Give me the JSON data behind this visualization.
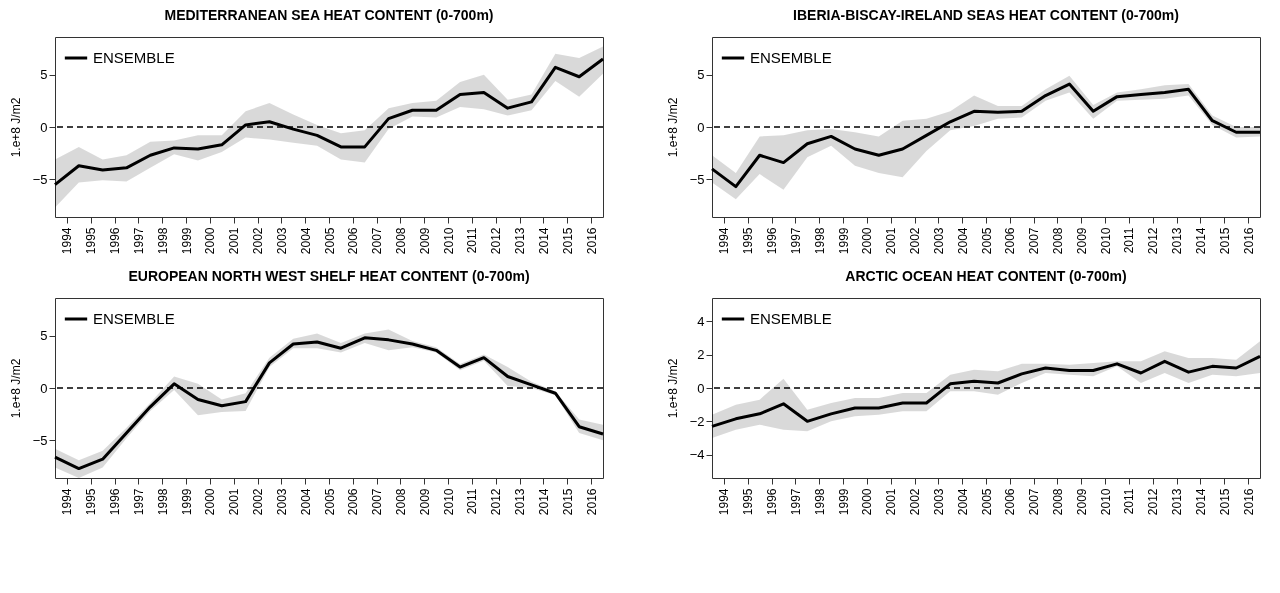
{
  "chart_data": [
    {
      "type": "line",
      "title": "MEDITERRANEAN SEA HEAT CONTENT (0-700m)",
      "ylabel": "1.e+8 J/m2",
      "legend": "top left",
      "grid": false,
      "x": [
        1993.5,
        1994.5,
        1995.5,
        1996.5,
        1997.5,
        1998.5,
        1999.5,
        2000.5,
        2001.5,
        2002.5,
        2003.5,
        2004.5,
        2005.5,
        2006.5,
        2007.5,
        2008.5,
        2009.5,
        2010.5,
        2011.5,
        2012.5,
        2013.5,
        2014.5,
        2015.5,
        2016.5
      ],
      "xlim": [
        1993.5,
        2016.5
      ],
      "xticks": [
        1994,
        1995,
        1996,
        1997,
        1998,
        1999,
        2000,
        2001,
        2002,
        2003,
        2004,
        2005,
        2006,
        2007,
        2008,
        2009,
        2010,
        2011,
        2012,
        2013,
        2014,
        2015,
        2016
      ],
      "ylim": [
        -8.6,
        8.6
      ],
      "yticks": [
        -5,
        0,
        5
      ],
      "series": [
        {
          "name": "ENSEMBLE",
          "color": "#000000",
          "values": [
            -5.5,
            -3.7,
            -4.1,
            -3.9,
            -2.7,
            -2.0,
            -2.1,
            -1.7,
            0.2,
            0.5,
            -0.2,
            -0.8,
            -1.9,
            -1.9,
            0.8,
            1.6,
            1.6,
            3.1,
            3.3,
            1.8,
            2.4,
            5.7,
            4.8,
            6.5
          ],
          "lower": [
            -7.7,
            -5.3,
            -5.1,
            -5.2,
            -3.9,
            -2.6,
            -3.2,
            -2.4,
            -1.0,
            -1.2,
            -1.5,
            -1.8,
            -3.1,
            -3.4,
            -0.2,
            1.0,
            0.9,
            1.9,
            1.7,
            1.1,
            1.6,
            4.4,
            2.9,
            5.1
          ],
          "upper": [
            -3.1,
            -1.9,
            -3.1,
            -2.7,
            -1.4,
            -1.3,
            -0.8,
            -0.8,
            1.5,
            2.3,
            1.2,
            0.2,
            -0.6,
            -0.3,
            1.8,
            2.3,
            2.5,
            4.3,
            5.0,
            2.6,
            3.1,
            7.0,
            6.6,
            7.7
          ]
        }
      ],
      "ref_lines": [
        {
          "axis": "y",
          "value": 0,
          "line_style": "dashed"
        }
      ]
    },
    {
      "type": "line",
      "title": "IBERIA-BISCAY-IRELAND SEAS HEAT CONTENT (0-700m)",
      "ylabel": "1.e+8 J/m2",
      "legend": "top left",
      "grid": false,
      "x": [
        1993.5,
        1994.5,
        1995.5,
        1996.5,
        1997.5,
        1998.5,
        1999.5,
        2000.5,
        2001.5,
        2002.5,
        2003.5,
        2004.5,
        2005.5,
        2006.5,
        2007.5,
        2008.5,
        2009.5,
        2010.5,
        2011.5,
        2012.5,
        2013.5,
        2014.5,
        2015.5,
        2016.5
      ],
      "xlim": [
        1993.5,
        2016.5
      ],
      "xticks": [
        1994,
        1995,
        1996,
        1997,
        1998,
        1999,
        2000,
        2001,
        2002,
        2003,
        2004,
        2005,
        2006,
        2007,
        2008,
        2009,
        2010,
        2011,
        2012,
        2013,
        2014,
        2015,
        2016
      ],
      "ylim": [
        -8.6,
        8.6
      ],
      "yticks": [
        -5,
        0,
        5
      ],
      "series": [
        {
          "name": "ENSEMBLE",
          "color": "#000000",
          "values": [
            -4.0,
            -5.7,
            -2.7,
            -3.4,
            -1.6,
            -0.9,
            -2.1,
            -2.7,
            -2.1,
            -0.8,
            0.5,
            1.5,
            1.4,
            1.5,
            3.0,
            4.1,
            1.5,
            2.9,
            3.1,
            3.3,
            3.6,
            0.6,
            -0.5,
            -0.5
          ],
          "lower": [
            -5.3,
            -6.9,
            -4.5,
            -6.0,
            -2.9,
            -1.8,
            -3.7,
            -4.4,
            -4.8,
            -2.3,
            -0.3,
            0.1,
            0.8,
            0.9,
            2.5,
            3.3,
            0.8,
            2.5,
            2.6,
            2.7,
            3.0,
            0.2,
            -1.0,
            -0.9
          ],
          "upper": [
            -2.7,
            -4.4,
            -0.9,
            -0.8,
            -0.3,
            -0.2,
            -0.5,
            -0.9,
            0.6,
            0.8,
            1.5,
            3.0,
            2.0,
            2.0,
            3.6,
            4.9,
            2.1,
            3.3,
            3.6,
            4.0,
            4.1,
            1.1,
            0.0,
            0.0
          ]
        }
      ],
      "ref_lines": [
        {
          "axis": "y",
          "value": 0,
          "line_style": "dashed"
        }
      ]
    },
    {
      "type": "line",
      "title": "EUROPEAN NORTH WEST SHELF HEAT CONTENT (0-700m)",
      "ylabel": "1.e+8 J/m2",
      "legend": "top left",
      "grid": false,
      "x": [
        1993.5,
        1994.5,
        1995.5,
        1996.5,
        1997.5,
        1998.5,
        1999.5,
        2000.5,
        2001.5,
        2002.5,
        2003.5,
        2004.5,
        2005.5,
        2006.5,
        2007.5,
        2008.5,
        2009.5,
        2010.5,
        2011.5,
        2012.5,
        2013.5,
        2014.5,
        2015.5,
        2016.5
      ],
      "xlim": [
        1993.5,
        2016.5
      ],
      "xticks": [
        1994,
        1995,
        1996,
        1997,
        1998,
        1999,
        2000,
        2001,
        2002,
        2003,
        2004,
        2005,
        2006,
        2007,
        2008,
        2009,
        2010,
        2011,
        2012,
        2013,
        2014,
        2015,
        2016
      ],
      "ylim": [
        -8.6,
        8.6
      ],
      "yticks": [
        -5,
        0,
        5
      ],
      "series": [
        {
          "name": "ENSEMBLE",
          "color": "#000000",
          "values": [
            -6.6,
            -7.7,
            -6.8,
            -4.3,
            -1.8,
            0.4,
            -1.1,
            -1.7,
            -1.3,
            2.4,
            4.2,
            4.4,
            3.8,
            4.8,
            4.6,
            4.2,
            3.6,
            2.0,
            2.9,
            1.1,
            0.3,
            -0.5,
            -3.7,
            -4.4
          ],
          "lower": [
            -7.6,
            -8.6,
            -7.6,
            -4.8,
            -2.2,
            -0.2,
            -2.6,
            -2.3,
            -2.2,
            2.0,
            3.8,
            3.8,
            3.4,
            4.3,
            3.6,
            3.9,
            3.4,
            1.7,
            2.6,
            0.2,
            0.0,
            -0.7,
            -4.3,
            -5.0
          ],
          "upper": [
            -5.8,
            -6.9,
            -6.0,
            -3.8,
            -1.4,
            1.1,
            0.4,
            -1.1,
            -0.5,
            2.9,
            4.7,
            5.2,
            4.3,
            5.2,
            5.6,
            4.5,
            3.9,
            2.3,
            3.2,
            2.0,
            0.6,
            -0.3,
            -3.0,
            -3.5
          ]
        }
      ],
      "ref_lines": [
        {
          "axis": "y",
          "value": 0,
          "line_style": "dashed"
        }
      ]
    },
    {
      "type": "line",
      "title": "ARCTIC OCEAN HEAT CONTENT (0-700m)",
      "ylabel": "1.e+8 J/m2",
      "legend": "top left",
      "grid": false,
      "x": [
        1993.5,
        1994.5,
        1995.5,
        1996.5,
        1997.5,
        1998.5,
        1999.5,
        2000.5,
        2001.5,
        2002.5,
        2003.5,
        2004.5,
        2005.5,
        2006.5,
        2007.5,
        2008.5,
        2009.5,
        2010.5,
        2011.5,
        2012.5,
        2013.5,
        2014.5,
        2015.5,
        2016.5
      ],
      "xlim": [
        1993.5,
        2016.5
      ],
      "xticks": [
        1994,
        1995,
        1996,
        1997,
        1998,
        1999,
        2000,
        2001,
        2002,
        2003,
        2004,
        2005,
        2006,
        2007,
        2008,
        2009,
        2010,
        2011,
        2012,
        2013,
        2014,
        2015,
        2016
      ],
      "ylim": [
        -5.4,
        5.4
      ],
      "yticks": [
        -4,
        -2,
        0,
        2,
        4
      ],
      "series": [
        {
          "name": "ENSEMBLE",
          "color": "#000000",
          "values": [
            -2.3,
            -1.85,
            -1.55,
            -0.95,
            -2.0,
            -1.55,
            -1.2,
            -1.2,
            -0.9,
            -0.9,
            0.25,
            0.4,
            0.3,
            0.85,
            1.2,
            1.05,
            1.05,
            1.45,
            0.9,
            1.6,
            0.95,
            1.3,
            1.2,
            1.9
          ],
          "lower": [
            -3.0,
            -2.5,
            -2.2,
            -2.5,
            -2.6,
            -2.0,
            -1.7,
            -1.6,
            -1.4,
            -1.4,
            -0.2,
            -0.2,
            -0.4,
            0.3,
            0.9,
            0.8,
            0.7,
            1.3,
            0.3,
            0.9,
            0.3,
            0.8,
            0.7,
            0.9
          ],
          "upper": [
            -1.6,
            -1.0,
            -0.7,
            0.55,
            -1.3,
            -0.9,
            -0.6,
            -0.6,
            -0.3,
            -0.3,
            0.8,
            1.1,
            1.0,
            1.45,
            1.45,
            1.4,
            1.5,
            1.6,
            1.6,
            2.2,
            1.8,
            1.8,
            1.7,
            2.8
          ]
        }
      ],
      "ref_lines": [
        {
          "axis": "y",
          "value": 0,
          "line_style": "dashed"
        }
      ]
    }
  ]
}
